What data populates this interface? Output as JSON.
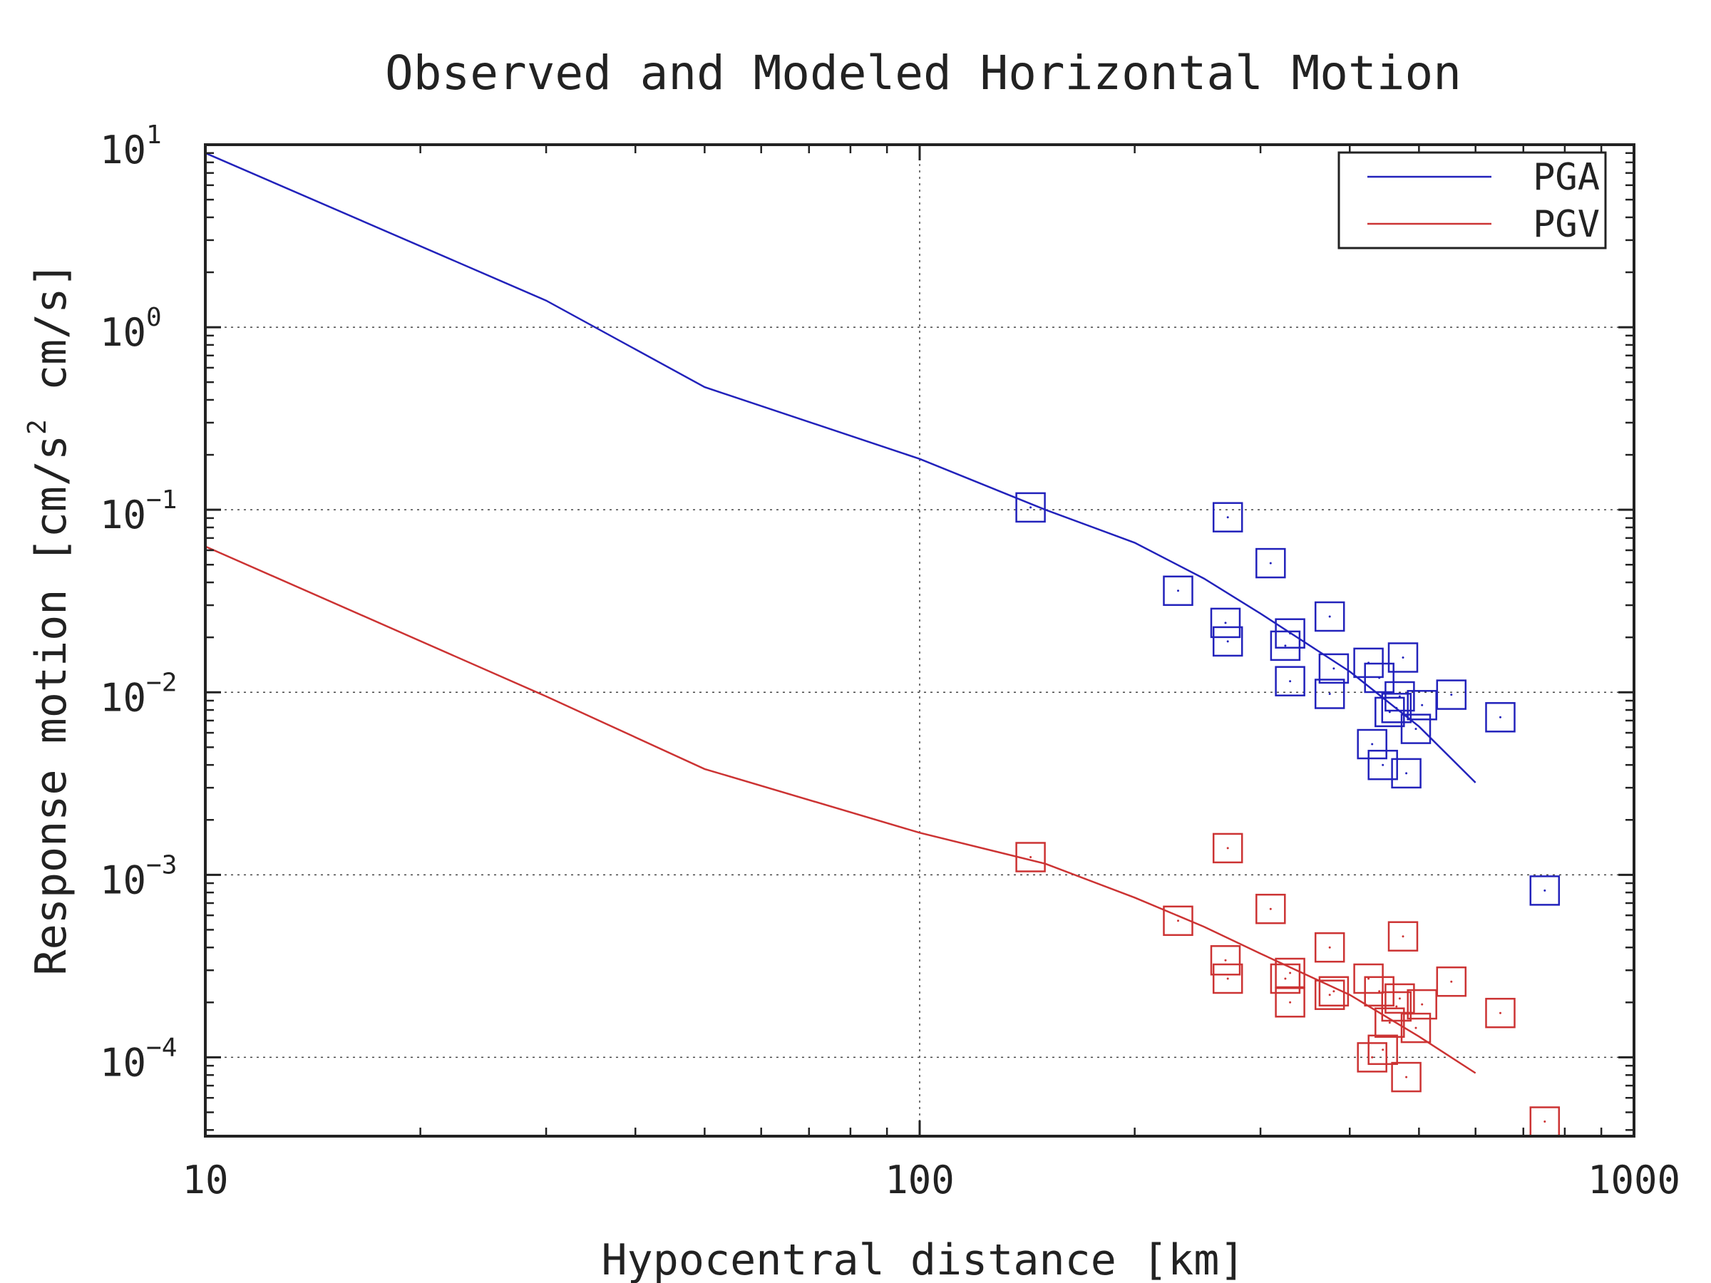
{
  "chart_data": {
    "type": "scatter",
    "title": "Observed and Modeled Horizontal Motion",
    "xlabel": "Hypocentral distance [km]",
    "ylabel": "Response motion [cm/s",
    "ylabel_sup": "2",
    "ylabel_tail": "cm/s]",
    "x_scale": "log",
    "y_scale": "log",
    "xlim": [
      10,
      1000
    ],
    "ylim": [
      3.7e-05,
      10
    ],
    "x_ticks": [
      {
        "value": 10,
        "label": "10"
      },
      {
        "value": 100,
        "label": "100"
      },
      {
        "value": 1000,
        "label": "1000"
      }
    ],
    "y_ticks": [
      {
        "value": 10,
        "base": "10",
        "exp": "1"
      },
      {
        "value": 1,
        "base": "10",
        "exp": "0"
      },
      {
        "value": 0.1,
        "base": "10",
        "exp": "−1"
      },
      {
        "value": 0.01,
        "base": "10",
        "exp": "−2"
      },
      {
        "value": 0.001,
        "base": "10",
        "exp": "−3"
      },
      {
        "value": 0.0001,
        "base": "10",
        "exp": "−4"
      }
    ],
    "grid": true,
    "legend": {
      "position": "top-right",
      "entries": [
        "PGA",
        "PGV"
      ]
    },
    "series": [
      {
        "name": "PGA",
        "color": "#2222bb",
        "model_line": [
          [
            10,
            9.0
          ],
          [
            30,
            1.4
          ],
          [
            50,
            0.47
          ],
          [
            100,
            0.19
          ],
          [
            150,
            0.1
          ],
          [
            200,
            0.066
          ],
          [
            250,
            0.042
          ],
          [
            300,
            0.027
          ],
          [
            400,
            0.013
          ],
          [
            500,
            0.0065
          ],
          [
            600,
            0.0032
          ]
        ],
        "observed": [
          [
            143,
            0.103
          ],
          [
            270,
            0.091
          ],
          [
            310,
            0.051
          ],
          [
            230,
            0.036
          ],
          [
            268,
            0.024
          ],
          [
            270,
            0.019
          ],
          [
            330,
            0.021
          ],
          [
            325,
            0.018
          ],
          [
            330,
            0.0115
          ],
          [
            375,
            0.026
          ],
          [
            380,
            0.0135
          ],
          [
            375,
            0.0098
          ],
          [
            425,
            0.0145
          ],
          [
            440,
            0.012
          ],
          [
            475,
            0.0155
          ],
          [
            470,
            0.0095
          ],
          [
            455,
            0.0078
          ],
          [
            465,
            0.0082
          ],
          [
            505,
            0.0085
          ],
          [
            495,
            0.0063
          ],
          [
            555,
            0.0097
          ],
          [
            650,
            0.0073
          ],
          [
            430,
            0.0052
          ],
          [
            445,
            0.004
          ],
          [
            480,
            0.0036
          ],
          [
            750,
            0.00082
          ]
        ]
      },
      {
        "name": "PGV",
        "color": "#cc3333",
        "model_line": [
          [
            10,
            0.063
          ],
          [
            30,
            0.0095
          ],
          [
            50,
            0.0038
          ],
          [
            100,
            0.0017
          ],
          [
            150,
            0.00115
          ],
          [
            200,
            0.00075
          ],
          [
            250,
            0.00052
          ],
          [
            300,
            0.00037
          ],
          [
            400,
            0.00022
          ],
          [
            500,
            0.00013
          ],
          [
            600,
            8.2e-05
          ]
        ],
        "observed": [
          [
            143,
            0.00125
          ],
          [
            270,
            0.0014
          ],
          [
            310,
            0.00065
          ],
          [
            230,
            0.00056
          ],
          [
            268,
            0.00034
          ],
          [
            270,
            0.00027
          ],
          [
            330,
            0.00029
          ],
          [
            325,
            0.00027
          ],
          [
            330,
            0.0002
          ],
          [
            375,
            0.0004
          ],
          [
            380,
            0.00023
          ],
          [
            375,
            0.00022
          ],
          [
            425,
            0.00027
          ],
          [
            440,
            0.00023
          ],
          [
            475,
            0.00046
          ],
          [
            470,
            0.00021
          ],
          [
            455,
            0.000155
          ],
          [
            465,
            0.00019
          ],
          [
            505,
            0.000195
          ],
          [
            495,
            0.000145
          ],
          [
            555,
            0.00026
          ],
          [
            650,
            0.000175
          ],
          [
            430,
            0.0001
          ],
          [
            445,
            0.00011
          ],
          [
            480,
            7.8e-05
          ],
          [
            750,
            4.45e-05
          ]
        ]
      }
    ]
  }
}
